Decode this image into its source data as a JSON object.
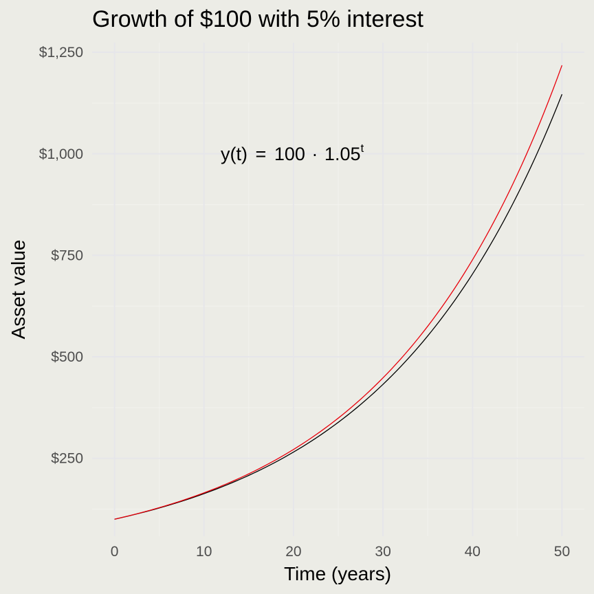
{
  "chart_data": {
    "type": "line",
    "title": "Growth of $100 with 5% interest",
    "xlabel": "Time (years)",
    "ylabel": "Asset value",
    "xlim": [
      -2.5,
      52.5
    ],
    "ylim": [
      58,
      1274
    ],
    "x_ticks": [
      0,
      10,
      20,
      30,
      40,
      50
    ],
    "x_tick_labels": [
      "0",
      "10",
      "20",
      "30",
      "40",
      "50"
    ],
    "y_ticks": [
      250,
      500,
      750,
      1000,
      1250
    ],
    "y_tick_labels": [
      "$250",
      "$500",
      "$750",
      "$1,000",
      "$1,250"
    ],
    "grid": true,
    "series": [
      {
        "color": "#000000",
        "x": [
          0,
          5,
          10,
          15,
          20,
          25,
          30,
          35,
          40,
          45,
          50
        ],
        "values": [
          100,
          127.6,
          162.9,
          207.9,
          265.3,
          338.6,
          432.2,
          551.6,
          704.0,
          898.5,
          1146.7
        ]
      },
      {
        "color": "#e8000b",
        "x": [
          0,
          5,
          10,
          15,
          20,
          25,
          30,
          35,
          40,
          45,
          50
        ],
        "values": [
          100,
          128.4,
          164.9,
          211.7,
          271.8,
          349.0,
          448.2,
          575.5,
          738.9,
          948.8,
          1218.2
        ]
      }
    ],
    "annotation": {
      "y_part": "y",
      "t_part": "t",
      "equals": "=",
      "base": "100",
      "dot": "·",
      "rate": "1.05",
      "exponent": "t"
    }
  }
}
